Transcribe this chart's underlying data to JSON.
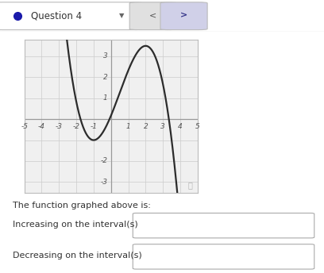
{
  "title": "Question 4",
  "x_min": -5,
  "x_max": 5,
  "y_min": -3.5,
  "y_max": 3.8,
  "x_ticks": [
    -5,
    -4,
    -3,
    -2,
    -1,
    1,
    2,
    3,
    4,
    5
  ],
  "y_ticks": [
    -3,
    -2,
    1,
    2,
    3
  ],
  "curve_color": "#2c2c2c",
  "grid_color": "#cccccc",
  "axis_color": "#999999",
  "bg_color": "#ffffff",
  "graph_bg": "#f0f0f0",
  "text_color": "#333333",
  "label_increasing": "Increasing on the interval(s)",
  "label_decreasing": "Decreasing on the interval(s)",
  "poly_k": -1.0,
  "poly_C": 0.1667,
  "curve_x_start": -5.0,
  "curve_x_end": 4.1
}
